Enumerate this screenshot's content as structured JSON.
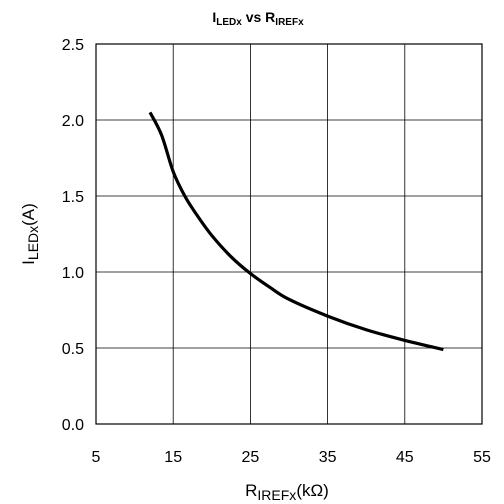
{
  "chart_data": {
    "type": "line",
    "title": {
      "main": "I",
      "main_sub": "LEDx",
      "mid": " vs ",
      "second": "R",
      "second_sub": "IREFx"
    },
    "xlabel": {
      "main": "R",
      "sub": "IREFx",
      "suffix": "(kΩ)"
    },
    "ylabel": {
      "main": "I",
      "sub": "LEDx",
      "suffix": "(A)"
    },
    "xlim": [
      5,
      55
    ],
    "ylim": [
      0,
      2.5
    ],
    "x_ticks": [
      "5",
      "15",
      "25",
      "35",
      "45",
      "55"
    ],
    "y_ticks": [
      "0.0",
      "0.5",
      "1.0",
      "1.5",
      "2.0",
      "2.5"
    ],
    "grid": true,
    "line_color": "#000000",
    "series": [
      {
        "x": [
          12,
          13.5,
          15,
          16.5,
          18,
          20,
          22.5,
          25,
          27.5,
          30,
          35,
          40,
          45,
          50
        ],
        "y": [
          2.05,
          1.9,
          1.66,
          1.5,
          1.38,
          1.24,
          1.1,
          0.99,
          0.9,
          0.82,
          0.71,
          0.62,
          0.55,
          0.49
        ]
      }
    ]
  }
}
